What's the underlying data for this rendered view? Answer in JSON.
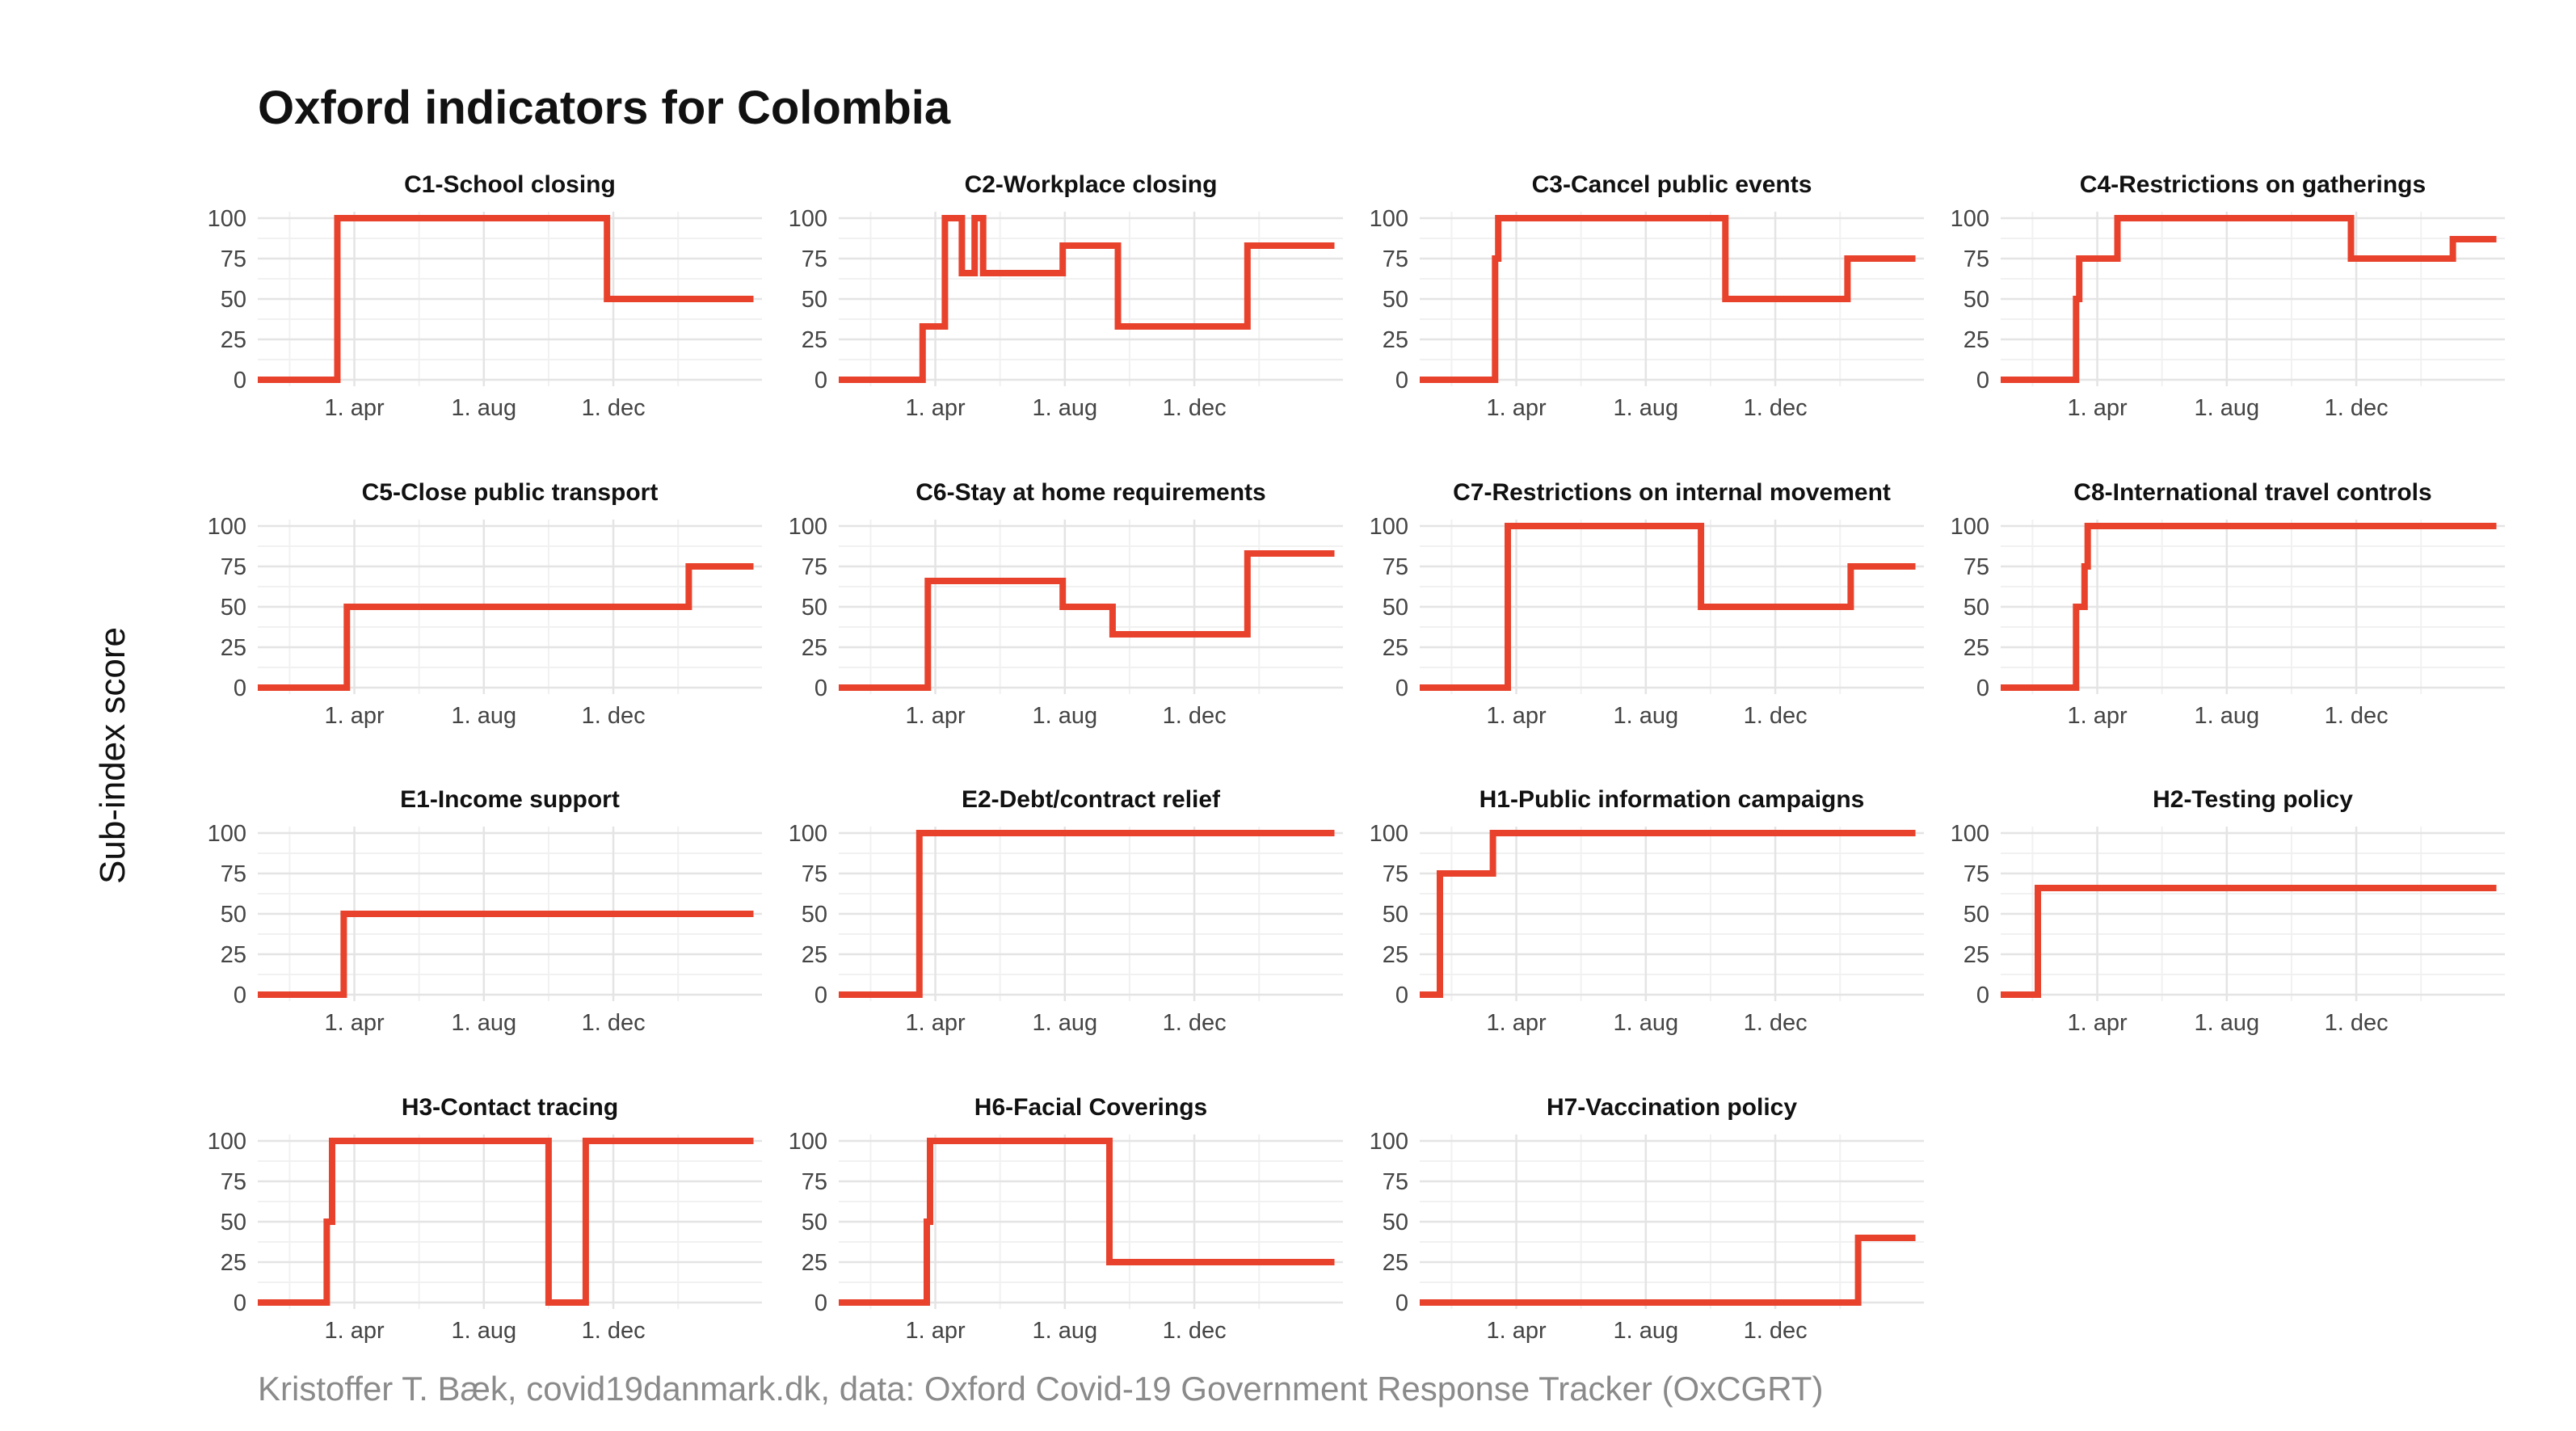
{
  "title": "Oxford indicators for Colombia",
  "ylabel": "Sub-index score",
  "caption": "Kristoffer T. Bæk, covid19danmark.dk, data: Oxford Covid-19 Government Response Tracker (OxCGRT)",
  "line_color": "#e8422c",
  "chart_data": {
    "type": "line",
    "layout": "small-multiples",
    "ylim": [
      0,
      100
    ],
    "yticks": [
      0,
      25,
      50,
      75,
      100
    ],
    "xlim": [
      "2020-01-01",
      "2021-04-20"
    ],
    "xticks": [
      {
        "date": "2020-04-01",
        "label": "1. apr"
      },
      {
        "date": "2020-08-01",
        "label": "1. aug"
      },
      {
        "date": "2020-12-01",
        "label": "1. dec"
      }
    ],
    "grid": true,
    "panels": [
      {
        "title": "C1-School closing",
        "x": [
          "2020-01-01",
          "2020-03-16",
          "2020-03-16",
          "2020-11-25",
          "2020-11-25",
          "2021-04-12"
        ],
        "y": [
          0,
          0,
          100,
          100,
          50,
          50
        ]
      },
      {
        "title": "C2-Workplace closing",
        "x": [
          "2020-01-01",
          "2020-03-20",
          "2020-03-20",
          "2020-04-10",
          "2020-04-10",
          "2020-04-26",
          "2020-04-26",
          "2020-05-08",
          "2020-05-08",
          "2020-05-16",
          "2020-05-16",
          "2020-05-26",
          "2020-05-26",
          "2020-07-30",
          "2020-07-30",
          "2020-09-20",
          "2020-09-20",
          "2021-01-20",
          "2021-01-20",
          "2021-04-12"
        ],
        "y": [
          0,
          0,
          33,
          33,
          100,
          100,
          66,
          66,
          100,
          100,
          66,
          66,
          66,
          66,
          83,
          83,
          33,
          33,
          83,
          83
        ]
      },
      {
        "title": "C3-Cancel public events",
        "x": [
          "2020-01-01",
          "2020-03-12",
          "2020-03-12",
          "2020-03-15",
          "2020-03-15",
          "2020-10-15",
          "2020-10-15",
          "2021-02-07",
          "2021-02-07",
          "2021-04-12"
        ],
        "y": [
          0,
          0,
          75,
          75,
          100,
          100,
          50,
          50,
          75,
          75
        ]
      },
      {
        "title": "C4-Restrictions on gatherings",
        "x": [
          "2020-01-01",
          "2020-03-12",
          "2020-03-12",
          "2020-03-15",
          "2020-03-15",
          "2020-04-20",
          "2020-04-20",
          "2020-05-01",
          "2020-05-01",
          "2020-11-26",
          "2020-11-26",
          "2021-03-02",
          "2021-03-02",
          "2021-04-12"
        ],
        "y": [
          0,
          0,
          50,
          50,
          75,
          75,
          100,
          100,
          100,
          100,
          75,
          75,
          87,
          87
        ]
      },
      {
        "title": "C5-Close public transport",
        "x": [
          "2020-01-01",
          "2020-03-25",
          "2020-03-25",
          "2021-02-10",
          "2021-02-10",
          "2021-04-12"
        ],
        "y": [
          0,
          0,
          50,
          50,
          75,
          75
        ]
      },
      {
        "title": "C6-Stay at home requirements",
        "x": [
          "2020-01-01",
          "2020-03-25",
          "2020-03-25",
          "2020-07-30",
          "2020-07-30",
          "2020-09-15",
          "2020-09-15",
          "2021-01-20",
          "2021-01-20",
          "2021-04-12"
        ],
        "y": [
          0,
          0,
          66,
          66,
          50,
          50,
          33,
          33,
          83,
          83
        ]
      },
      {
        "title": "C7-Restrictions on internal movement",
        "x": [
          "2020-01-01",
          "2020-03-24",
          "2020-03-24",
          "2020-09-22",
          "2020-09-22",
          "2021-02-10",
          "2021-02-10",
          "2021-04-12"
        ],
        "y": [
          0,
          0,
          100,
          100,
          50,
          50,
          75,
          75
        ]
      },
      {
        "title": "C8-International travel controls",
        "x": [
          "2020-01-01",
          "2020-03-12",
          "2020-03-12",
          "2020-03-20",
          "2020-03-20",
          "2020-03-23",
          "2020-03-23",
          "2021-04-12"
        ],
        "y": [
          0,
          0,
          50,
          50,
          75,
          75,
          100,
          100
        ]
      },
      {
        "title": "E1-Income support",
        "x": [
          "2020-01-01",
          "2020-03-22",
          "2020-03-22",
          "2021-04-12"
        ],
        "y": [
          0,
          0,
          50,
          50
        ]
      },
      {
        "title": "E2-Debt/contract relief",
        "x": [
          "2020-01-01",
          "2020-03-17",
          "2020-03-17",
          "2021-04-12"
        ],
        "y": [
          0,
          0,
          100,
          100
        ]
      },
      {
        "title": "H1-Public information campaigns",
        "x": [
          "2020-01-01",
          "2020-01-20",
          "2020-01-20",
          "2020-03-10",
          "2020-03-10",
          "2021-04-12"
        ],
        "y": [
          0,
          0,
          75,
          75,
          100,
          100
        ]
      },
      {
        "title": "H2-Testing policy",
        "x": [
          "2020-01-01",
          "2020-02-05",
          "2020-02-05",
          "2021-04-12"
        ],
        "y": [
          0,
          0,
          66,
          66
        ]
      },
      {
        "title": "H3-Contact tracing",
        "x": [
          "2020-01-01",
          "2020-03-06",
          "2020-03-06",
          "2020-03-11",
          "2020-03-11",
          "2020-10-01",
          "2020-10-01",
          "2020-11-05",
          "2020-11-05",
          "2021-04-12"
        ],
        "y": [
          0,
          0,
          50,
          50,
          100,
          100,
          0,
          0,
          100,
          100
        ]
      },
      {
        "title": "H6-Facial Coverings",
        "x": [
          "2020-01-01",
          "2020-03-24",
          "2020-03-24",
          "2020-03-27",
          "2020-03-27",
          "2020-09-12",
          "2020-09-12",
          "2021-04-12"
        ],
        "y": [
          0,
          0,
          50,
          50,
          100,
          100,
          25,
          25
        ]
      },
      {
        "title": "H7-Vaccination policy",
        "x": [
          "2020-01-01",
          "2021-02-17",
          "2021-02-17",
          "2021-04-12"
        ],
        "y": [
          0,
          0,
          40,
          40
        ]
      }
    ]
  }
}
